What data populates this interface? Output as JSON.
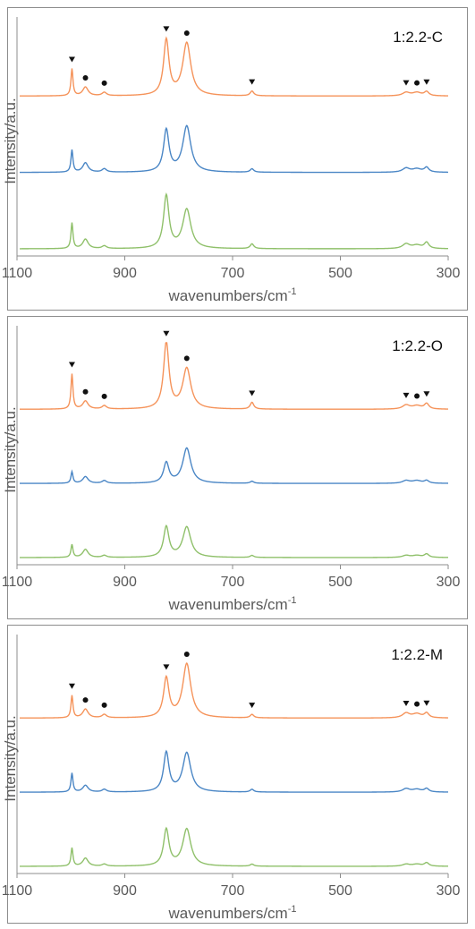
{
  "colors": {
    "orange": "#f5935a",
    "blue": "#4a86c5",
    "green": "#8fc06a",
    "axis": "#8c8c8c",
    "text": "#595959"
  },
  "chart_data": [
    {
      "type": "line",
      "title": "1:2.2-C",
      "xlabel": "wavenumbers/cm",
      "xlabel_sup": "-1",
      "ylabel": "Intensity/a.u.",
      "xlim": [
        1100,
        300
      ],
      "x_reversed": true,
      "x_ticks": [
        "1100",
        "900",
        "700",
        "500",
        "300"
      ],
      "y_ticks": "none",
      "legend": "none",
      "series": [
        {
          "color": "orange",
          "offset": 0.68,
          "peaks": [
            [
              998,
              0.4
            ],
            [
              973,
              0.13
            ],
            [
              938,
              0.05
            ],
            [
              823,
              0.82
            ],
            [
              785,
              0.78
            ],
            [
              664,
              0.07
            ],
            [
              378,
              0.05
            ],
            [
              358,
              0.05
            ],
            [
              340,
              0.06
            ]
          ]
        },
        {
          "color": "blue",
          "offset": 0.34,
          "peaks": [
            [
              998,
              0.33
            ],
            [
              973,
              0.14
            ],
            [
              938,
              0.05
            ],
            [
              823,
              0.62
            ],
            [
              785,
              0.68
            ],
            [
              664,
              0.05
            ],
            [
              378,
              0.06
            ],
            [
              358,
              0.05
            ],
            [
              340,
              0.07
            ]
          ]
        },
        {
          "color": "green",
          "offset": 0.0,
          "peaks": [
            [
              998,
              0.38
            ],
            [
              973,
              0.14
            ],
            [
              938,
              0.04
            ],
            [
              823,
              0.78
            ],
            [
              785,
              0.58
            ],
            [
              664,
              0.07
            ],
            [
              378,
              0.07
            ],
            [
              358,
              0.05
            ],
            [
              340,
              0.09
            ]
          ]
        }
      ],
      "markers": [
        {
          "x": 998,
          "symbol": "triangle"
        },
        {
          "x": 973,
          "symbol": "circle"
        },
        {
          "x": 938,
          "symbol": "circle"
        },
        {
          "x": 823,
          "symbol": "triangle"
        },
        {
          "x": 785,
          "symbol": "circle"
        },
        {
          "x": 664,
          "symbol": "triangle"
        },
        {
          "x": 378,
          "symbol": "triangle"
        },
        {
          "x": 358,
          "symbol": "circle"
        },
        {
          "x": 340,
          "symbol": "triangle"
        }
      ]
    },
    {
      "type": "line",
      "title": "1:2.2-O",
      "xlabel": "wavenumbers/cm",
      "xlabel_sup": "-1",
      "ylabel": "Intensity/a.u.",
      "xlim": [
        1100,
        300
      ],
      "x_reversed": true,
      "x_ticks": [
        "1100",
        "900",
        "700",
        "500",
        "300"
      ],
      "y_ticks": "none",
      "legend": "none",
      "series": [
        {
          "color": "orange",
          "offset": 0.66,
          "peaks": [
            [
              998,
              0.52
            ],
            [
              973,
              0.12
            ],
            [
              938,
              0.05
            ],
            [
              823,
              0.98
            ],
            [
              785,
              0.6
            ],
            [
              664,
              0.1
            ],
            [
              378,
              0.06
            ],
            [
              358,
              0.05
            ],
            [
              340,
              0.08
            ]
          ]
        },
        {
          "color": "blue",
          "offset": 0.33,
          "peaks": [
            [
              998,
              0.17
            ],
            [
              973,
              0.1
            ],
            [
              938,
              0.04
            ],
            [
              823,
              0.3
            ],
            [
              785,
              0.52
            ],
            [
              664,
              0.03
            ],
            [
              378,
              0.04
            ],
            [
              358,
              0.04
            ],
            [
              340,
              0.04
            ]
          ]
        },
        {
          "color": "green",
          "offset": 0.0,
          "peaks": [
            [
              998,
              0.19
            ],
            [
              973,
              0.12
            ],
            [
              938,
              0.03
            ],
            [
              823,
              0.45
            ],
            [
              785,
              0.45
            ],
            [
              664,
              0.03
            ],
            [
              378,
              0.03
            ],
            [
              358,
              0.03
            ],
            [
              340,
              0.05
            ]
          ]
        }
      ],
      "markers": [
        {
          "x": 998,
          "symbol": "triangle"
        },
        {
          "x": 973,
          "symbol": "circle"
        },
        {
          "x": 938,
          "symbol": "circle"
        },
        {
          "x": 823,
          "symbol": "triangle"
        },
        {
          "x": 785,
          "symbol": "circle"
        },
        {
          "x": 664,
          "symbol": "triangle"
        },
        {
          "x": 378,
          "symbol": "triangle"
        },
        {
          "x": 358,
          "symbol": "circle"
        },
        {
          "x": 340,
          "symbol": "triangle"
        }
      ]
    },
    {
      "type": "line",
      "title": "1:2.2-M",
      "xlabel": "wavenumbers/cm",
      "xlabel_sup": "-1",
      "ylabel": "Intensity/a.u.",
      "xlim": [
        1100,
        300
      ],
      "x_reversed": true,
      "x_ticks": [
        "1100",
        "900",
        "700",
        "500",
        "300"
      ],
      "y_ticks": "none",
      "legend": "none",
      "series": [
        {
          "color": "orange",
          "offset": 0.66,
          "peaks": [
            [
              998,
              0.33
            ],
            [
              973,
              0.13
            ],
            [
              938,
              0.05
            ],
            [
              823,
              0.58
            ],
            [
              785,
              0.8
            ],
            [
              664,
              0.05
            ],
            [
              378,
              0.07
            ],
            [
              358,
              0.06
            ],
            [
              340,
              0.07
            ]
          ]
        },
        {
          "color": "blue",
          "offset": 0.33,
          "peaks": [
            [
              998,
              0.28
            ],
            [
              973,
              0.1
            ],
            [
              938,
              0.04
            ],
            [
              823,
              0.58
            ],
            [
              785,
              0.58
            ],
            [
              664,
              0.04
            ],
            [
              378,
              0.05
            ],
            [
              358,
              0.04
            ],
            [
              340,
              0.05
            ]
          ]
        },
        {
          "color": "green",
          "offset": 0.0,
          "peaks": [
            [
              998,
              0.27
            ],
            [
              973,
              0.12
            ],
            [
              938,
              0.03
            ],
            [
              823,
              0.54
            ],
            [
              785,
              0.55
            ],
            [
              664,
              0.03
            ],
            [
              378,
              0.03
            ],
            [
              358,
              0.03
            ],
            [
              340,
              0.05
            ]
          ]
        }
      ],
      "markers": [
        {
          "x": 998,
          "symbol": "triangle"
        },
        {
          "x": 973,
          "symbol": "circle"
        },
        {
          "x": 938,
          "symbol": "circle"
        },
        {
          "x": 823,
          "symbol": "triangle"
        },
        {
          "x": 785,
          "symbol": "circle"
        },
        {
          "x": 664,
          "symbol": "triangle"
        },
        {
          "x": 378,
          "symbol": "triangle"
        },
        {
          "x": 358,
          "symbol": "circle"
        },
        {
          "x": 340,
          "symbol": "triangle"
        }
      ]
    }
  ]
}
